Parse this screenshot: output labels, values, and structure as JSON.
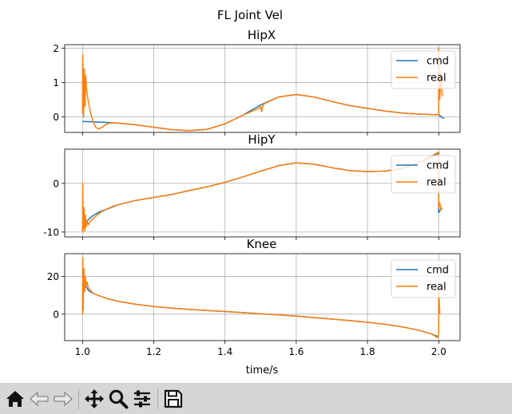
{
  "figure": {
    "suptitle": "FL Joint Vel",
    "xlabel": "time/s",
    "colors": {
      "cmd": "#1f77b4",
      "real": "#ff7f0e",
      "grid": "#b0b0b0"
    }
  },
  "toolbar": {
    "buttons": [
      {
        "name": "home-button",
        "icon": "home-icon"
      },
      {
        "name": "back-button",
        "icon": "arrow-left-icon"
      },
      {
        "name": "forward-button",
        "icon": "arrow-right-icon"
      },
      {
        "name": "pan-button",
        "icon": "move-icon"
      },
      {
        "name": "zoom-button",
        "icon": "magnifier-icon"
      },
      {
        "name": "configure-subplots-button",
        "icon": "sliders-icon"
      },
      {
        "name": "save-button",
        "icon": "floppy-disk-icon"
      }
    ]
  },
  "chart_data": [
    {
      "type": "line",
      "title": "HipX",
      "xlim": [
        0.95,
        2.06
      ],
      "ylim": [
        -0.45,
        2.1
      ],
      "xticks": [
        1.0,
        1.2,
        1.4,
        1.6,
        1.8,
        2.0
      ],
      "yticks": [
        0,
        1,
        2
      ],
      "grid": true,
      "legend": "upper right",
      "series": [
        {
          "name": "cmd",
          "x": [
            1.0,
            1.05,
            1.1,
            1.15,
            1.2,
            1.25,
            1.3,
            1.35,
            1.4,
            1.45,
            1.5,
            1.55,
            1.6,
            1.65,
            1.7,
            1.75,
            1.8,
            1.85,
            1.9,
            1.95,
            2.0,
            2.015
          ],
          "y": [
            -0.13,
            -0.15,
            -0.18,
            -0.23,
            -0.3,
            -0.37,
            -0.4,
            -0.36,
            -0.2,
            0.05,
            0.35,
            0.58,
            0.65,
            0.58,
            0.45,
            0.33,
            0.25,
            0.17,
            0.11,
            0.08,
            0.06,
            -0.05
          ]
        },
        {
          "name": "real",
          "x": [
            1.0,
            1.001,
            1.003,
            1.005,
            1.007,
            1.009,
            1.011,
            1.014,
            1.018,
            1.023,
            1.03,
            1.037,
            1.045,
            1.055,
            1.065,
            1.075,
            1.09,
            1.1,
            1.15,
            1.2,
            1.25,
            1.3,
            1.35,
            1.4,
            1.45,
            1.495,
            1.5,
            1.503,
            1.506,
            1.51,
            1.55,
            1.6,
            1.65,
            1.7,
            1.75,
            1.8,
            1.85,
            1.9,
            1.95,
            2.0,
            2.0,
            2.003,
            2.006,
            2.01
          ],
          "y": [
            0.1,
            1.8,
            0.0,
            1.4,
            0.3,
            1.2,
            0.8,
            0.6,
            0.35,
            0.1,
            -0.15,
            -0.3,
            -0.35,
            -0.3,
            -0.22,
            -0.18,
            -0.17,
            -0.18,
            -0.23,
            -0.3,
            -0.37,
            -0.4,
            -0.36,
            -0.2,
            0.05,
            0.25,
            0.3,
            0.15,
            0.32,
            0.38,
            0.58,
            0.65,
            0.58,
            0.45,
            0.33,
            0.25,
            0.17,
            0.11,
            0.08,
            0.06,
            2.0,
            0.5,
            1.3,
            0.6
          ]
        }
      ]
    },
    {
      "type": "line",
      "title": "HipY",
      "xlim": [
        0.95,
        2.06
      ],
      "ylim": [
        -11,
        7
      ],
      "xticks": [
        1.0,
        1.2,
        1.4,
        1.6,
        1.8,
        2.0
      ],
      "yticks": [
        -10,
        0
      ],
      "grid": true,
      "legend": "upper right",
      "series": [
        {
          "name": "cmd",
          "x": [
            1.0,
            1.003,
            1.01,
            1.02,
            1.03,
            1.05,
            1.08,
            1.1,
            1.15,
            1.2,
            1.25,
            1.3,
            1.35,
            1.4,
            1.45,
            1.5,
            1.55,
            1.6,
            1.65,
            1.7,
            1.75,
            1.8,
            1.85,
            1.9,
            1.95,
            2.0,
            2.0,
            2.005,
            2.01
          ],
          "y": [
            -9.0,
            -8.5,
            -7.9,
            -7.2,
            -6.6,
            -5.8,
            -5.0,
            -4.4,
            -3.5,
            -2.9,
            -2.3,
            -1.5,
            -0.7,
            0.2,
            1.3,
            2.5,
            3.6,
            4.2,
            3.9,
            3.2,
            2.6,
            2.4,
            2.5,
            3.1,
            4.4,
            6.2,
            -6.0,
            -5.5,
            -5.0
          ]
        },
        {
          "name": "real",
          "x": [
            1.0,
            1.001,
            1.002,
            1.004,
            1.006,
            1.008,
            1.01,
            1.013,
            1.016,
            1.02,
            1.025,
            1.03,
            1.04,
            1.05,
            1.07,
            1.09,
            1.1,
            1.15,
            1.2,
            1.25,
            1.3,
            1.35,
            1.4,
            1.45,
            1.5,
            1.55,
            1.6,
            1.65,
            1.7,
            1.75,
            1.8,
            1.85,
            1.9,
            1.95,
            2.0,
            2.0,
            2.003,
            2.006,
            2.01
          ],
          "y": [
            -10.0,
            0.0,
            -9.5,
            -5.0,
            -9.8,
            -6.5,
            -9.0,
            -7.8,
            -8.5,
            -8.0,
            -7.6,
            -7.2,
            -6.6,
            -6.0,
            -5.2,
            -4.6,
            -4.4,
            -3.5,
            -2.9,
            -2.3,
            -1.5,
            -0.7,
            0.2,
            1.3,
            2.5,
            3.6,
            4.2,
            3.9,
            3.2,
            2.6,
            2.4,
            2.5,
            3.1,
            4.4,
            6.4,
            -5.0,
            -4.0,
            -5.5,
            -5.0
          ]
        }
      ]
    },
    {
      "type": "line",
      "title": "Knee",
      "xlim": [
        0.95,
        2.06
      ],
      "ylim": [
        -14,
        32
      ],
      "xticks": [
        1.0,
        1.2,
        1.4,
        1.6,
        1.8,
        2.0
      ],
      "yticks": [
        0,
        20
      ],
      "grid": true,
      "legend": "upper right",
      "series": [
        {
          "name": "cmd",
          "x": [
            1.0,
            1.003,
            1.006,
            1.01,
            1.015,
            1.02,
            1.03,
            1.05,
            1.07,
            1.1,
            1.15,
            1.2,
            1.25,
            1.3,
            1.35,
            1.4,
            1.45,
            1.5,
            1.55,
            1.6,
            1.65,
            1.7,
            1.75,
            1.8,
            1.85,
            1.9,
            1.95,
            1.98,
            2.0
          ],
          "y": [
            22.0,
            18.0,
            16.0,
            14.5,
            13.0,
            12.0,
            11.0,
            9.5,
            8.2,
            6.8,
            5.2,
            4.0,
            3.2,
            2.5,
            1.9,
            1.4,
            0.8,
            0.2,
            -0.4,
            -1.0,
            -1.8,
            -2.6,
            -3.4,
            -4.3,
            -5.4,
            -6.8,
            -8.8,
            -10.5,
            -12.0
          ]
        },
        {
          "name": "real",
          "x": [
            1.0,
            1.001,
            1.002,
            1.004,
            1.006,
            1.008,
            1.01,
            1.013,
            1.016,
            1.02,
            1.025,
            1.03,
            1.05,
            1.07,
            1.1,
            1.15,
            1.2,
            1.25,
            1.3,
            1.35,
            1.4,
            1.45,
            1.5,
            1.55,
            1.6,
            1.65,
            1.7,
            1.75,
            1.8,
            1.85,
            1.9,
            1.95,
            1.98,
            1.997,
            2.0,
            2.0,
            2.003
          ],
          "y": [
            0.0,
            30.0,
            2.0,
            24.0,
            12.0,
            20.0,
            15.0,
            17.0,
            14.0,
            13.0,
            12.0,
            11.0,
            9.5,
            8.2,
            6.8,
            5.2,
            4.0,
            3.2,
            2.5,
            1.9,
            1.4,
            0.8,
            0.2,
            -0.4,
            -1.0,
            -1.8,
            -2.6,
            -3.4,
            -4.3,
            -5.4,
            -6.8,
            -8.8,
            -10.5,
            -12.5,
            -10.0,
            14.0,
            0.0
          ]
        }
      ]
    }
  ]
}
